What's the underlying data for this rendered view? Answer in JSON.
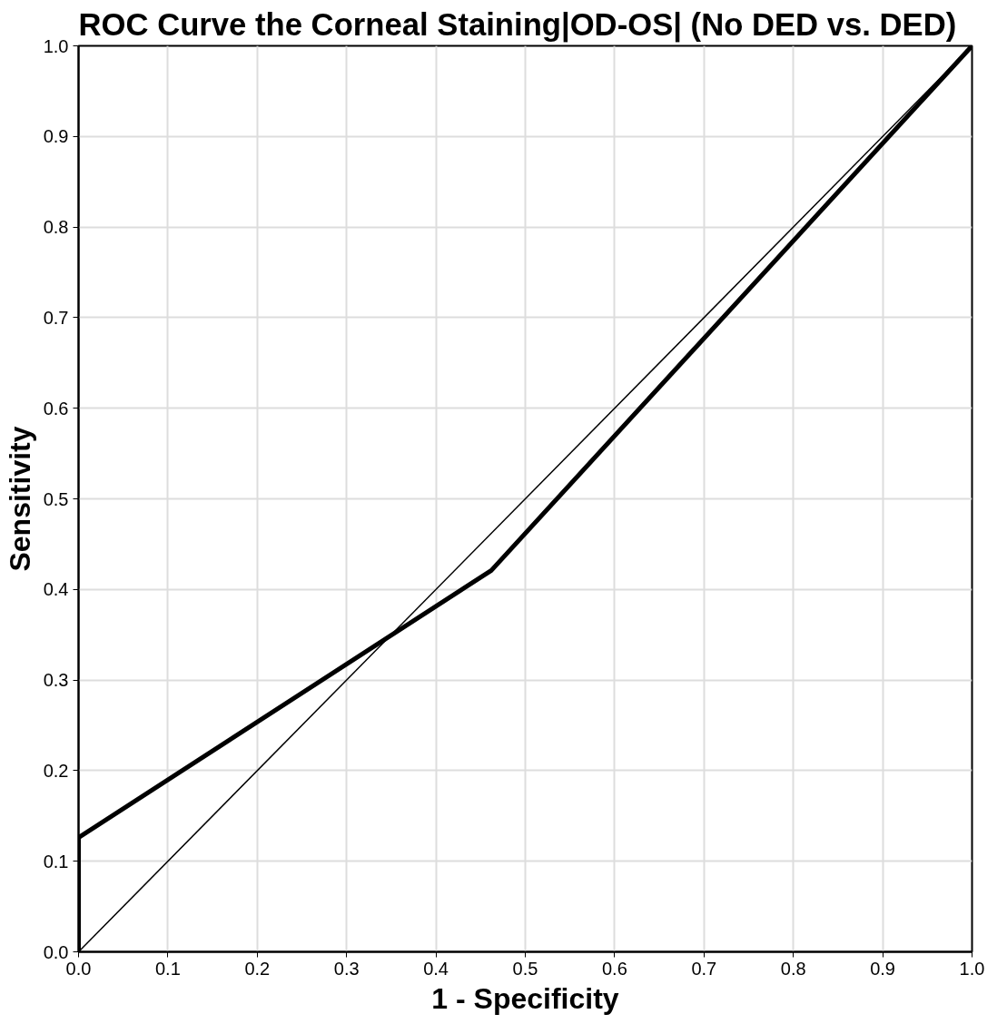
{
  "chart_data": {
    "type": "line",
    "title": "ROC Curve the Corneal Staining|OD-OS| (No DED vs. DED)",
    "xlabel": "1 - Specificity",
    "ylabel": "Sensitivity",
    "series": [
      {
        "color": "#000000",
        "x": [
          0.0,
          0.0,
          0.462,
          1.0
        ],
        "values": [
          0.0,
          0.126,
          0.421,
          1.0
        ]
      },
      {
        "color": "#000000",
        "x": [
          0.0,
          1.0
        ],
        "values": [
          0.0,
          1.0
        ]
      }
    ],
    "xlim": [
      0.0,
      1.0
    ],
    "ylim": [
      0.0,
      1.0
    ],
    "xticks": [
      {
        "value": 0,
        "label": "0.0"
      },
      0.1,
      0.2,
      0.3,
      0.4,
      0.5,
      0.6,
      0.7,
      0.8,
      0.9,
      {
        "value": 1,
        "label": "1.0"
      }
    ],
    "yticks": [
      {
        "value": 0,
        "label": "0.0"
      },
      0.1,
      0.2,
      0.3,
      0.4,
      0.5,
      0.6,
      0.7,
      0.8,
      0.9,
      {
        "value": 1,
        "label": "1.0"
      }
    ],
    "grid": true,
    "marker": "none",
    "line_style": "solid"
  }
}
